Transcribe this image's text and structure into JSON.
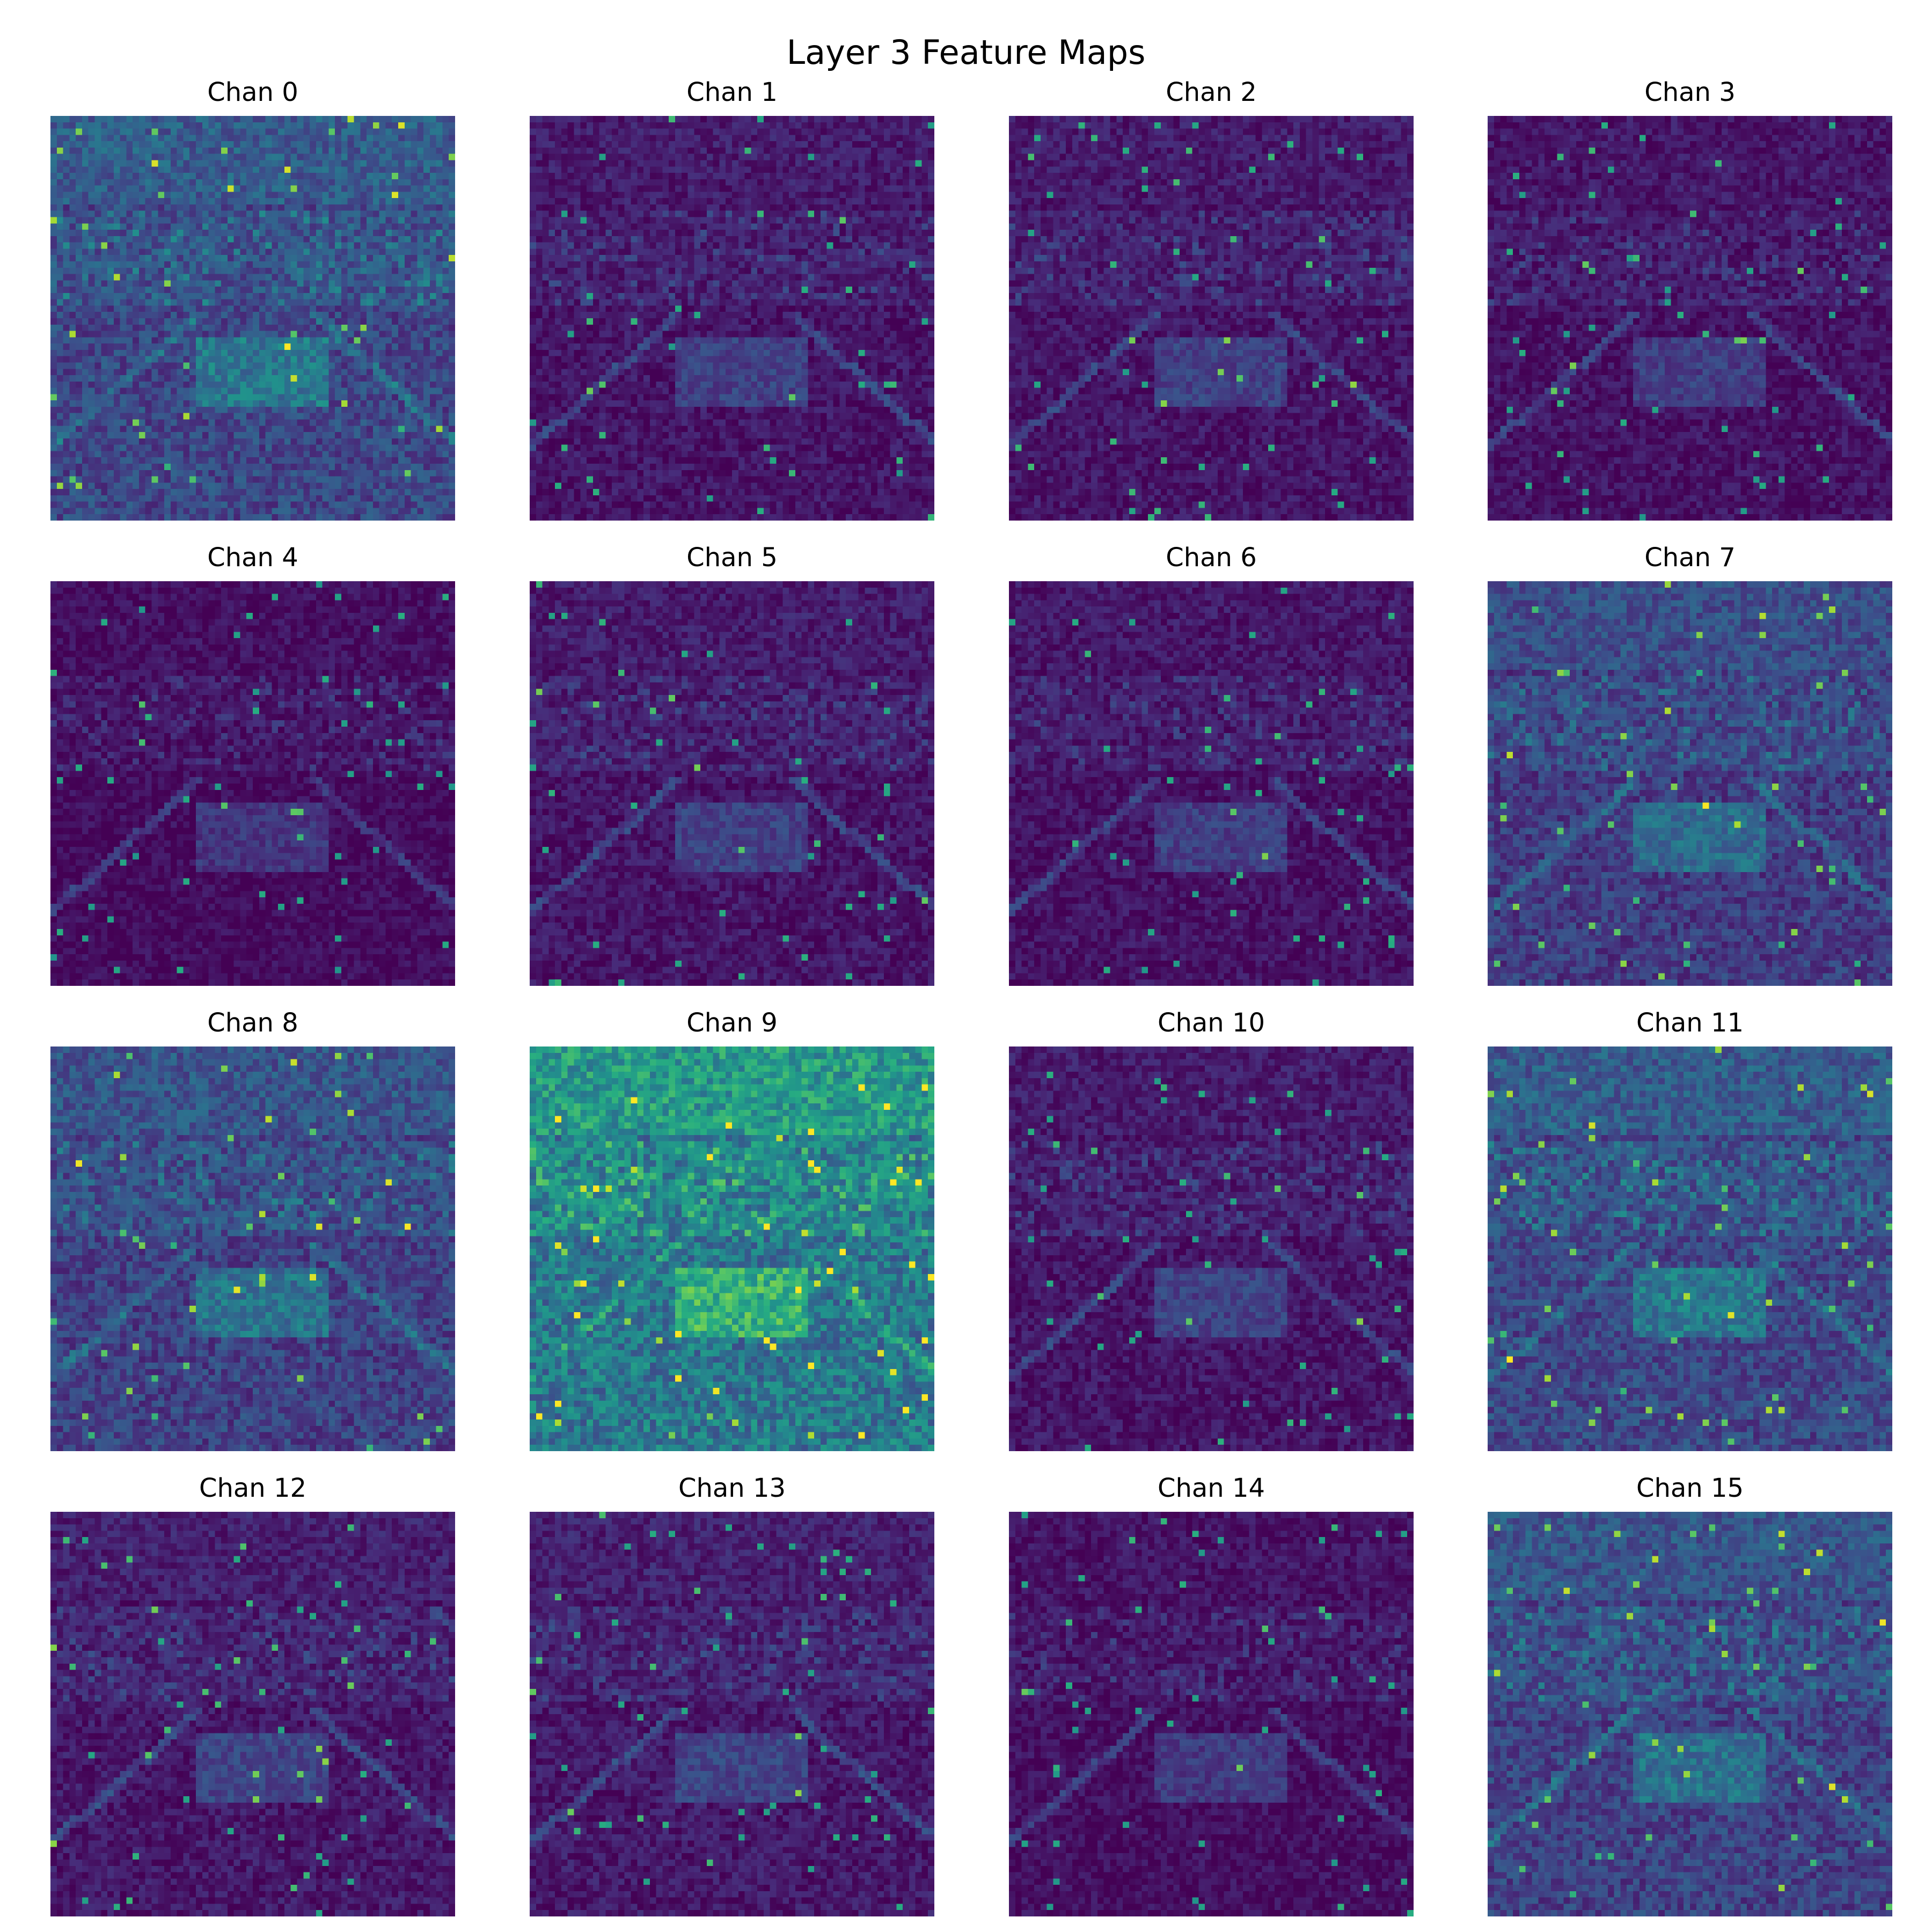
{
  "figure_title": "Layer 3 Feature Maps",
  "chart_data": {
    "type": "heatmap",
    "title": "Layer 3 Feature Maps",
    "colormap": "viridis",
    "grid": false,
    "axes_visible": false,
    "layout": "4x4 grid",
    "panels": [
      {
        "title": "Chan 0",
        "base_level": 0.22
      },
      {
        "title": "Chan 1",
        "base_level": 0.06
      },
      {
        "title": "Chan 2",
        "base_level": 0.06
      },
      {
        "title": "Chan 3",
        "base_level": 0.05
      },
      {
        "title": "Chan 4",
        "base_level": 0.03
      },
      {
        "title": "Chan 5",
        "base_level": 0.06
      },
      {
        "title": "Chan 6",
        "base_level": 0.05
      },
      {
        "title": "Chan 7",
        "base_level": 0.18
      },
      {
        "title": "Chan 8",
        "base_level": 0.2
      },
      {
        "title": "Chan 9",
        "base_level": 0.4
      },
      {
        "title": "Chan 10",
        "base_level": 0.06
      },
      {
        "title": "Chan 11",
        "base_level": 0.22
      },
      {
        "title": "Chan 12",
        "base_level": 0.07
      },
      {
        "title": "Chan 13",
        "base_level": 0.07
      },
      {
        "title": "Chan 14",
        "base_level": 0.04
      },
      {
        "title": "Chan 15",
        "base_level": 0.2
      }
    ]
  },
  "colors": {
    "viridis_low": "#440154",
    "viridis_mid": "#21918c",
    "viridis_high": "#fde725"
  }
}
